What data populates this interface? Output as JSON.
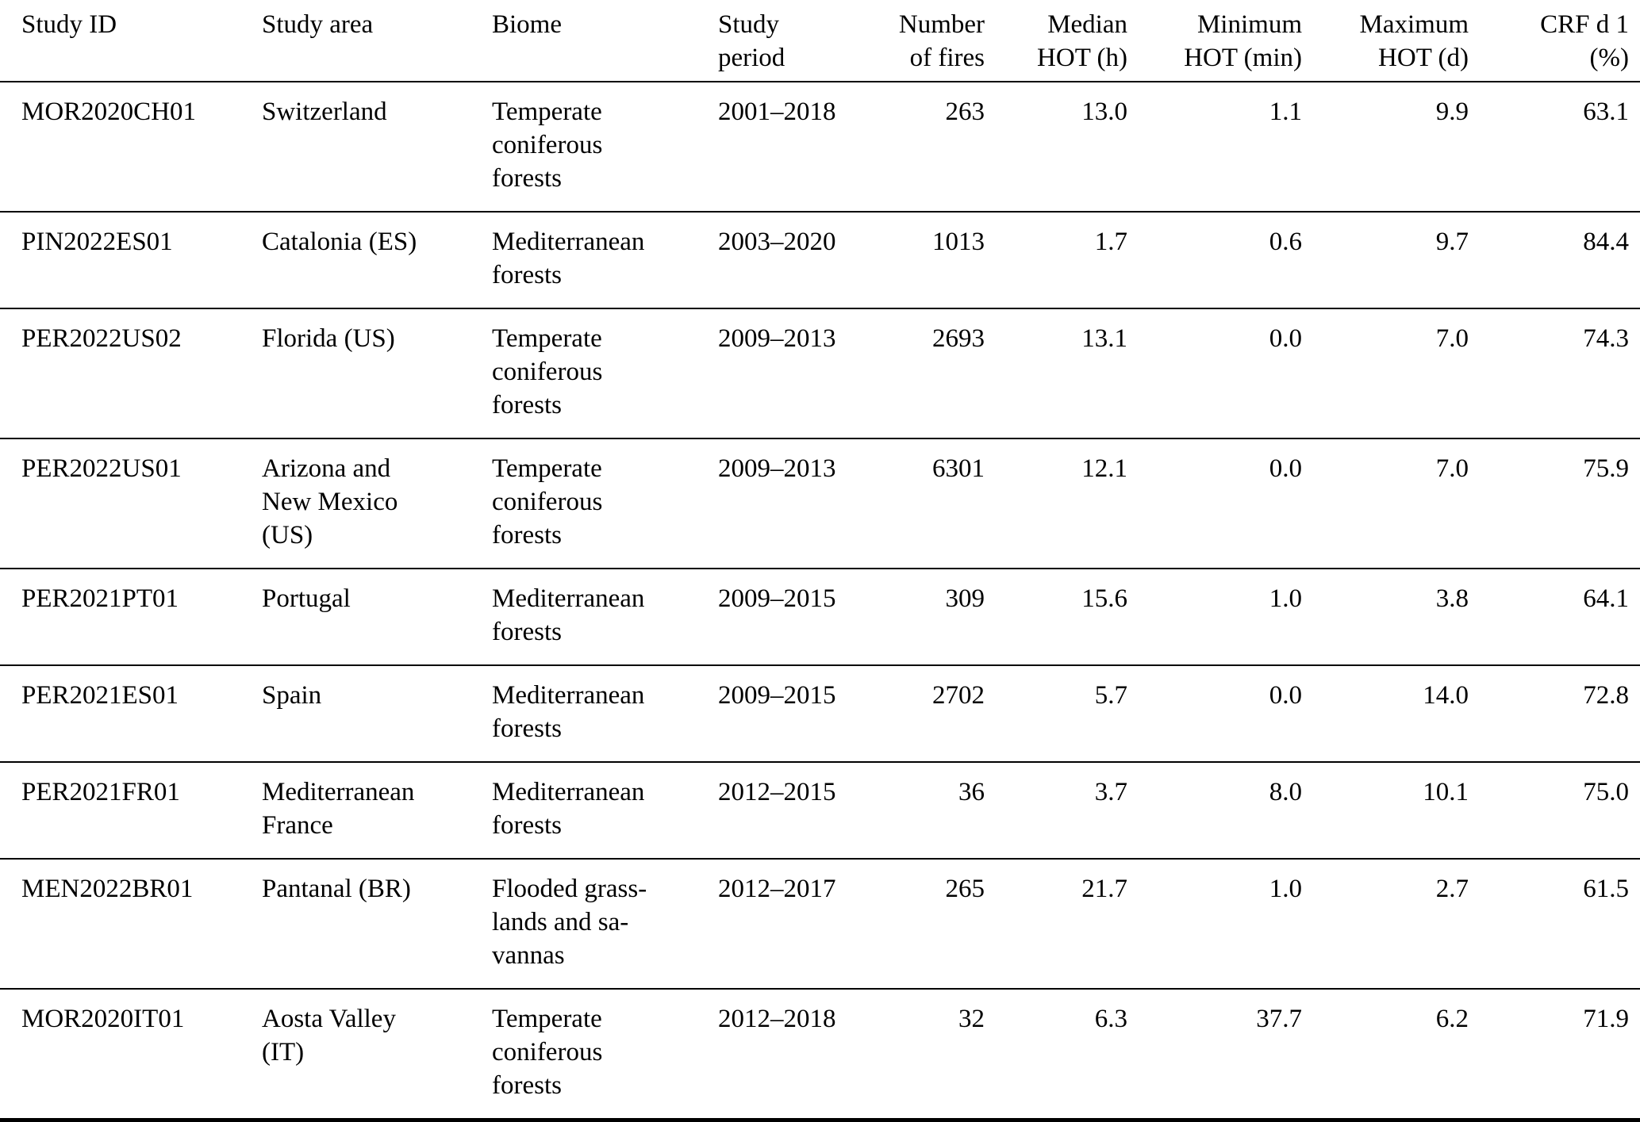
{
  "colors": {
    "background": "#ffffff",
    "text": "#000000",
    "rule": "#000000"
  },
  "table": {
    "columns": [
      {
        "id": "study-id",
        "label": "Study ID",
        "align": "left"
      },
      {
        "id": "study-area",
        "label": "Study area",
        "align": "left"
      },
      {
        "id": "biome",
        "label": "Biome",
        "align": "left"
      },
      {
        "id": "study-period",
        "label": "Study\nperiod",
        "align": "left"
      },
      {
        "id": "number-of-fires",
        "label": "Number\nof fires",
        "align": "right"
      },
      {
        "id": "median-hot",
        "label": "Median\nHOT (h)",
        "align": "right"
      },
      {
        "id": "minimum-hot",
        "label": "Minimum\nHOT (min)",
        "align": "right"
      },
      {
        "id": "maximum-hot",
        "label": "Maximum\nHOT (d)",
        "align": "right"
      },
      {
        "id": "crf-d1",
        "label": "CRF d 1\n(%)",
        "align": "right"
      }
    ],
    "rows": [
      [
        "MOR2020CH01",
        "Switzerland",
        "Temperate\nconiferous\nforests",
        "2001–2018",
        "263",
        "13.0",
        "1.1",
        "9.9",
        "63.1"
      ],
      [
        "PIN2022ES01",
        "Catalonia (ES)",
        "Mediterranean\nforests",
        "2003–2020",
        "1013",
        "1.7",
        "0.6",
        "9.7",
        "84.4"
      ],
      [
        "PER2022US02",
        "Florida (US)",
        "Temperate\nconiferous\nforests",
        "2009–2013",
        "2693",
        "13.1",
        "0.0",
        "7.0",
        "74.3"
      ],
      [
        "PER2022US01",
        "Arizona and\nNew Mexico\n(US)",
        "Temperate\nconiferous\nforests",
        "2009–2013",
        "6301",
        "12.1",
        "0.0",
        "7.0",
        "75.9"
      ],
      [
        "PER2021PT01",
        "Portugal",
        "Mediterranean\nforests",
        "2009–2015",
        "309",
        "15.6",
        "1.0",
        "3.8",
        "64.1"
      ],
      [
        "PER2021ES01",
        "Spain",
        "Mediterranean\nforests",
        "2009–2015",
        "2702",
        "5.7",
        "0.0",
        "14.0",
        "72.8"
      ],
      [
        "PER2021FR01",
        "Mediterranean\nFrance",
        "Mediterranean\nforests",
        "2012–2015",
        "36",
        "3.7",
        "8.0",
        "10.1",
        "75.0"
      ],
      [
        "MEN2022BR01",
        "Pantanal (BR)",
        "Flooded grass-\nlands and sa-\nvannas",
        "2012–2017",
        "265",
        "21.7",
        "1.0",
        "2.7",
        "61.5"
      ],
      [
        "MOR2020IT01",
        "Aosta Valley\n(IT)",
        "Temperate\nconiferous\nforests",
        "2012–2018",
        "32",
        "6.3",
        "37.7",
        "6.2",
        "71.9"
      ]
    ]
  }
}
